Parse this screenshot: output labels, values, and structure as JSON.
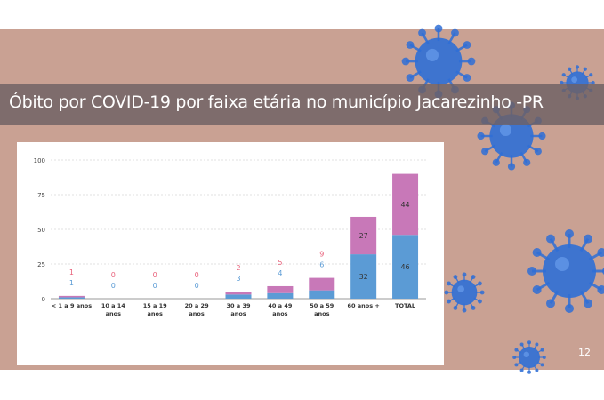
{
  "slide": {
    "title": "Óbito por COVID-19 por faixa etária no município Jacarezinho -PR",
    "page_number": "12",
    "decoration": "virus-icon",
    "colors": {
      "background": "#c9a193",
      "band": "#6e6064",
      "virus": "#2f6fd6"
    }
  },
  "chart_data": {
    "type": "bar",
    "stacked": true,
    "categories": [
      "< 1 a 9 anos",
      "10 a 14 anos",
      "15 a 19 anos",
      "20 a 29 anos",
      "30 a 39 anos",
      "40 a 49 anos",
      "50 a 59 anos",
      "60 anos +",
      "TOTAL"
    ],
    "series": [
      {
        "color": "#5b9bd5",
        "label_color": "#5b9bd5",
        "values": [
          1,
          0,
          0,
          0,
          3,
          4,
          6,
          32,
          46
        ]
      },
      {
        "color": "#c878b8",
        "label_color": "#e8607a",
        "values": [
          1,
          0,
          0,
          0,
          2,
          5,
          9,
          27,
          44
        ]
      }
    ],
    "y_ticks": [
      "0",
      "25",
      "50",
      "75",
      "100"
    ],
    "ylim": [
      0,
      100
    ],
    "grid": true,
    "legend": "none",
    "title": "",
    "xlabel": "",
    "ylabel": ""
  }
}
